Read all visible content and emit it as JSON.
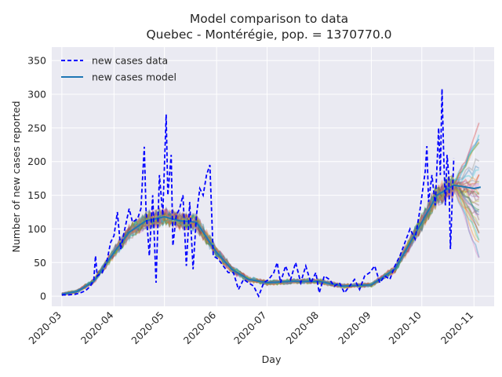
{
  "chart_data": {
    "type": "line",
    "title": "Model comparison to data",
    "subtitle": "Quebec - Montérégie, pop. = 1370770.0",
    "xlabel": "Day",
    "ylabel": "Number of new cases reported",
    "x_ticks": [
      "2020-03",
      "2020-04",
      "2020-05",
      "2020-06",
      "2020-07",
      "2020-08",
      "2020-09",
      "2020-10",
      "2020-11"
    ],
    "xlim": [
      "2020-02-24",
      "2020-11-13"
    ],
    "ylim": [
      -15,
      370
    ],
    "y_ticks": [
      0,
      50,
      100,
      150,
      200,
      250,
      300,
      350
    ],
    "grid": true,
    "legend_position": "top-left",
    "legend": [
      "new cases data",
      "new cases model"
    ],
    "colors": {
      "background": "#eaeaf2",
      "grid": "#ffffff",
      "data": "#0000ff",
      "model": "#1f77b4",
      "ensemble": [
        "#1f77b4",
        "#ff7f0e",
        "#2ca02c",
        "#d62728",
        "#9467bd",
        "#8c564b",
        "#e377c2",
        "#7f7f7f",
        "#bcbd22",
        "#17becf"
      ]
    },
    "series": [
      {
        "name": "new cases data",
        "style": "dashed",
        "points": [
          [
            "2020-03-01",
            2
          ],
          [
            "2020-03-05",
            2
          ],
          [
            "2020-03-09",
            3
          ],
          [
            "2020-03-12",
            5
          ],
          [
            "2020-03-15",
            8
          ],
          [
            "2020-03-18",
            15
          ],
          [
            "2020-03-20",
            25
          ],
          [
            "2020-03-21",
            60
          ],
          [
            "2020-03-22",
            30
          ],
          [
            "2020-03-25",
            35
          ],
          [
            "2020-03-28",
            55
          ],
          [
            "2020-03-30",
            80
          ],
          [
            "2020-04-01",
            90
          ],
          [
            "2020-04-03",
            125
          ],
          [
            "2020-04-05",
            70
          ],
          [
            "2020-04-07",
            95
          ],
          [
            "2020-04-10",
            130
          ],
          [
            "2020-04-12",
            110
          ],
          [
            "2020-04-15",
            115
          ],
          [
            "2020-04-17",
            130
          ],
          [
            "2020-04-19",
            222
          ],
          [
            "2020-04-20",
            130
          ],
          [
            "2020-04-22",
            60
          ],
          [
            "2020-04-24",
            150
          ],
          [
            "2020-04-26",
            20
          ],
          [
            "2020-04-28",
            180
          ],
          [
            "2020-04-30",
            120
          ],
          [
            "2020-05-02",
            270
          ],
          [
            "2020-05-03",
            150
          ],
          [
            "2020-05-05",
            210
          ],
          [
            "2020-05-06",
            75
          ],
          [
            "2020-05-08",
            120
          ],
          [
            "2020-05-10",
            130
          ],
          [
            "2020-05-12",
            150
          ],
          [
            "2020-05-14",
            45
          ],
          [
            "2020-05-16",
            140
          ],
          [
            "2020-05-18",
            40
          ],
          [
            "2020-05-20",
            120
          ],
          [
            "2020-05-22",
            160
          ],
          [
            "2020-05-24",
            150
          ],
          [
            "2020-05-26",
            180
          ],
          [
            "2020-05-28",
            195
          ],
          [
            "2020-05-30",
            60
          ],
          [
            "2020-06-02",
            55
          ],
          [
            "2020-06-05",
            45
          ],
          [
            "2020-06-08",
            35
          ],
          [
            "2020-06-11",
            35
          ],
          [
            "2020-06-14",
            10
          ],
          [
            "2020-06-17",
            25
          ],
          [
            "2020-06-20",
            20
          ],
          [
            "2020-06-23",
            15
          ],
          [
            "2020-06-26",
            0
          ],
          [
            "2020-06-29",
            20
          ],
          [
            "2020-07-02",
            25
          ],
          [
            "2020-07-05",
            35
          ],
          [
            "2020-07-07",
            50
          ],
          [
            "2020-07-09",
            20
          ],
          [
            "2020-07-12",
            45
          ],
          [
            "2020-07-15",
            25
          ],
          [
            "2020-07-18",
            50
          ],
          [
            "2020-07-21",
            20
          ],
          [
            "2020-07-24",
            45
          ],
          [
            "2020-07-27",
            20
          ],
          [
            "2020-07-30",
            35
          ],
          [
            "2020-08-01",
            5
          ],
          [
            "2020-08-04",
            30
          ],
          [
            "2020-08-07",
            25
          ],
          [
            "2020-08-10",
            15
          ],
          [
            "2020-08-13",
            20
          ],
          [
            "2020-08-16",
            5
          ],
          [
            "2020-08-19",
            15
          ],
          [
            "2020-08-22",
            25
          ],
          [
            "2020-08-25",
            10
          ],
          [
            "2020-08-28",
            30
          ],
          [
            "2020-08-31",
            35
          ],
          [
            "2020-09-03",
            45
          ],
          [
            "2020-09-06",
            20
          ],
          [
            "2020-09-09",
            30
          ],
          [
            "2020-09-12",
            25
          ],
          [
            "2020-09-15",
            45
          ],
          [
            "2020-09-18",
            60
          ],
          [
            "2020-09-21",
            80
          ],
          [
            "2020-09-24",
            100
          ],
          [
            "2020-09-27",
            85
          ],
          [
            "2020-09-30",
            130
          ],
          [
            "2020-10-03",
            185
          ],
          [
            "2020-10-04",
            223
          ],
          [
            "2020-10-05",
            140
          ],
          [
            "2020-10-07",
            180
          ],
          [
            "2020-10-09",
            135
          ],
          [
            "2020-10-11",
            250
          ],
          [
            "2020-10-12",
            180
          ],
          [
            "2020-10-13",
            308
          ],
          [
            "2020-10-14",
            210
          ],
          [
            "2020-10-15",
            135
          ],
          [
            "2020-10-16",
            210
          ],
          [
            "2020-10-17",
            180
          ],
          [
            "2020-10-18",
            70
          ],
          [
            "2020-10-20",
            205
          ]
        ]
      },
      {
        "name": "new cases model",
        "style": "solid",
        "points": [
          [
            "2020-03-01",
            3
          ],
          [
            "2020-03-10",
            7
          ],
          [
            "2020-03-20",
            22
          ],
          [
            "2020-04-01",
            65
          ],
          [
            "2020-04-10",
            95
          ],
          [
            "2020-04-20",
            112
          ],
          [
            "2020-05-01",
            118
          ],
          [
            "2020-05-10",
            112
          ],
          [
            "2020-05-20",
            110
          ],
          [
            "2020-06-01",
            65
          ],
          [
            "2020-06-10",
            40
          ],
          [
            "2020-06-20",
            25
          ],
          [
            "2020-07-01",
            20
          ],
          [
            "2020-07-15",
            22
          ],
          [
            "2020-08-01",
            22
          ],
          [
            "2020-08-15",
            15
          ],
          [
            "2020-09-01",
            17
          ],
          [
            "2020-09-15",
            40
          ],
          [
            "2020-10-01",
            110
          ],
          [
            "2020-10-10",
            150
          ],
          [
            "2020-10-20",
            165
          ],
          [
            "2020-11-01",
            160
          ],
          [
            "2020-11-05",
            162
          ]
        ]
      }
    ]
  }
}
